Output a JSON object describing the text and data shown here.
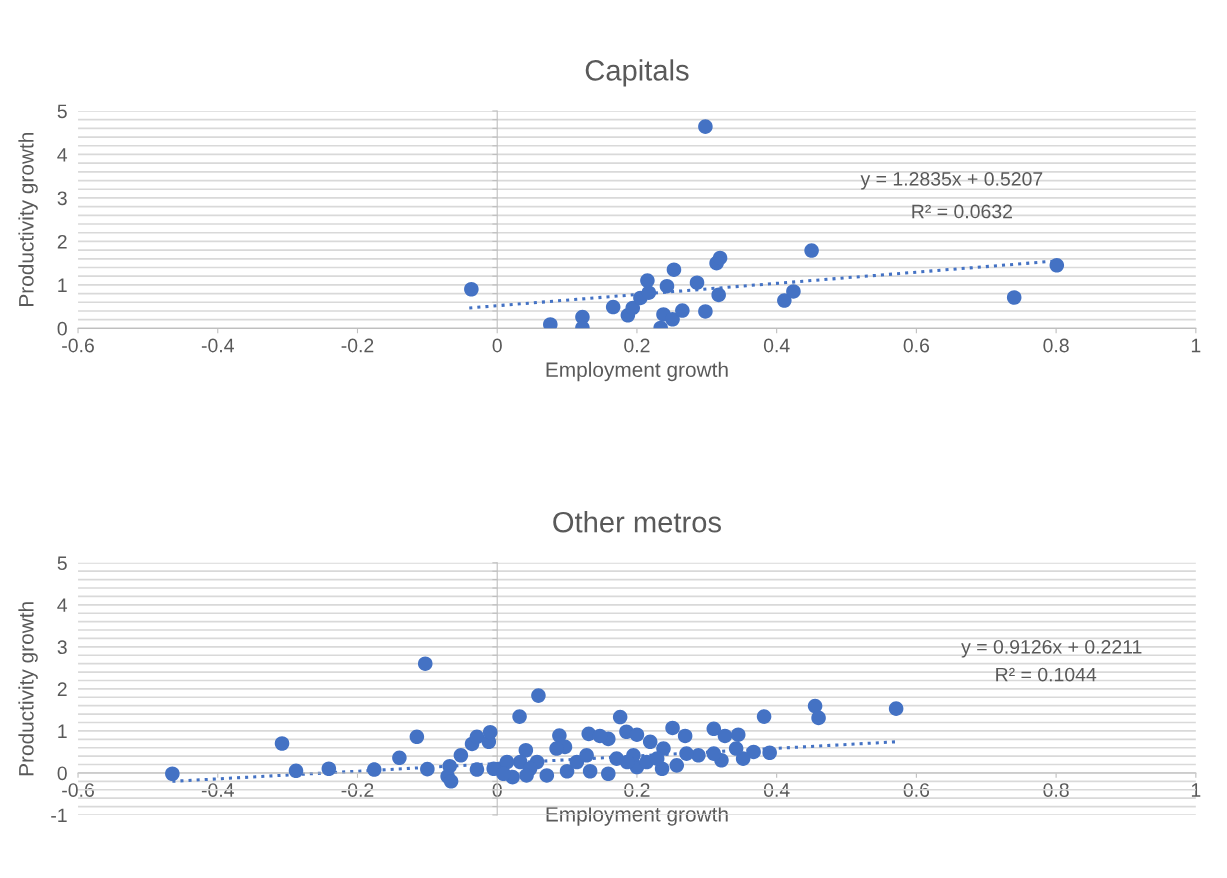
{
  "chart_data": [
    {
      "type": "scatter",
      "title": "Capitals",
      "xlabel": "Employment growth",
      "ylabel": "Productivity growth",
      "marker": "circle",
      "grid": "y",
      "legend": false,
      "xlim": [
        -0.6,
        1
      ],
      "xticks": [
        -0.6,
        -0.4,
        -0.2,
        0,
        0.2,
        0.4,
        0.6,
        0.8,
        1
      ],
      "ylim": [
        0,
        5
      ],
      "yticks": [
        0,
        {
          "value": 0.2,
          "label": null
        },
        {
          "value": 0.4,
          "label": null
        },
        {
          "value": 0.6,
          "label": null
        },
        {
          "value": 0.8,
          "label": null
        },
        1,
        {
          "value": 1.2,
          "label": null
        },
        {
          "value": 1.4,
          "label": null
        },
        {
          "value": 1.6,
          "label": null
        },
        {
          "value": 1.8,
          "label": null
        },
        2,
        {
          "value": 2.2,
          "label": null
        },
        {
          "value": 2.4,
          "label": null
        },
        {
          "value": 2.6,
          "label": null
        },
        {
          "value": 2.8,
          "label": null
        },
        3,
        {
          "value": 3.2,
          "label": null
        },
        {
          "value": 3.4,
          "label": null
        },
        {
          "value": 3.6,
          "label": null
        },
        {
          "value": 3.8,
          "label": null
        },
        4,
        {
          "value": 4.2,
          "label": null
        },
        {
          "value": 4.4,
          "label": null
        },
        {
          "value": 4.6,
          "label": null
        },
        {
          "value": 4.8,
          "label": null
        },
        5
      ],
      "annotations": [
        "y = 1.2835x + 0.5207",
        "R² = 0.0632"
      ],
      "series": [
        {
          "color": "#4472c4",
          "x": [
            -0.037,
            0.076,
            0.122,
            0.122,
            0.166,
            0.187,
            0.194,
            0.205,
            0.215,
            0.217,
            0.234,
            0.238,
            0.243,
            0.251,
            0.253,
            0.265,
            0.286,
            0.298,
            0.298,
            0.314,
            0.319,
            0.317,
            0.411,
            0.424,
            0.45,
            0.74,
            0.801
          ],
          "values": [
            0.9,
            0.09,
            0.26,
            0.01,
            0.49,
            0.3,
            0.47,
            0.7,
            1.1,
            0.82,
            0.01,
            0.32,
            0.97,
            0.21,
            1.35,
            0.41,
            1.05,
            4.64,
            0.39,
            1.5,
            1.62,
            0.77,
            0.64,
            0.85,
            1.79,
            0.71,
            1.45
          ]
        },
        {
          "type": "line",
          "line_style": "dotted",
          "marker": "none",
          "color": "#4472c4",
          "x": [
            -0.04,
            0.8
          ],
          "values": [
            0.47,
            1.55
          ]
        }
      ]
    },
    {
      "type": "scatter",
      "title": "Other metros",
      "xlabel": "Employment growth",
      "ylabel": "Productivity growth",
      "marker": "circle",
      "grid": "y",
      "legend": false,
      "xlim": [
        -0.6,
        1
      ],
      "xticks": [
        -0.6,
        -0.4,
        -0.2,
        0,
        0.2,
        0.4,
        0.6,
        0.8,
        1
      ],
      "ylim": [
        -1,
        5
      ],
      "yticks": [
        -1,
        {
          "value": -0.8,
          "label": null
        },
        {
          "value": -0.6,
          "label": null
        },
        {
          "value": -0.4,
          "label": null
        },
        {
          "value": -0.2,
          "label": null
        },
        0,
        {
          "value": 0.2,
          "label": null
        },
        {
          "value": 0.4,
          "label": null
        },
        {
          "value": 0.6,
          "label": null
        },
        {
          "value": 0.8,
          "label": null
        },
        1,
        {
          "value": 1.2,
          "label": null
        },
        {
          "value": 1.4,
          "label": null
        },
        {
          "value": 1.6,
          "label": null
        },
        {
          "value": 1.8,
          "label": null
        },
        2,
        {
          "value": 2.2,
          "label": null
        },
        {
          "value": 2.4,
          "label": null
        },
        {
          "value": 2.6,
          "label": null
        },
        {
          "value": 2.8,
          "label": null
        },
        3,
        {
          "value": 3.2,
          "label": null
        },
        {
          "value": 3.4,
          "label": null
        },
        {
          "value": 3.6,
          "label": null
        },
        {
          "value": 3.8,
          "label": null
        },
        4,
        {
          "value": 4.2,
          "label": null
        },
        {
          "value": 4.4,
          "label": null
        },
        {
          "value": 4.6,
          "label": null
        },
        {
          "value": 4.8,
          "label": null
        },
        5
      ],
      "annotations": [
        "y = 0.9126x + 0.2211",
        "R² = 0.1044"
      ],
      "series": [
        {
          "color": "#4472c4",
          "x": [
            -0.465,
            -0.308,
            -0.288,
            -0.241,
            -0.176,
            -0.14,
            -0.115,
            -0.103,
            -0.1,
            -0.068,
            -0.071,
            -0.066,
            -0.052,
            -0.036,
            -0.029,
            -0.012,
            -0.01,
            0.032,
            0.041,
            0.059,
            0.089,
            0.176,
            0.185,
            0.131,
            0.2,
            0.251,
            0.269,
            0.31,
            0.326,
            0.345,
            0.382,
            0.455,
            0.46,
            0.571,
            0.39,
            0.367,
            0.352,
            0.342,
            0.321,
            0.31,
            0.288,
            0.257,
            0.271,
            0.238,
            0.236,
            0.219,
            0.2,
            0.195,
            0.159,
            0.159,
            0.147,
            0.133,
            0.097,
            0.085,
            0.1,
            0.071,
            0.022,
            0.004,
            0.114,
            0.128,
            0.171,
            0.186,
            0.214,
            0.229,
            0.057,
            0.033,
            0.014,
            -0.029,
            -0.005,
            0.009,
            0.047,
            0.042
          ],
          "values": [
            -0.02,
            0.7,
            0.05,
            0.1,
            0.08,
            0.36,
            0.86,
            2.6,
            0.09,
            0.16,
            -0.08,
            -0.2,
            0.42,
            0.69,
            0.86,
            0.74,
            0.97,
            1.34,
            0.54,
            1.84,
            0.89,
            1.33,
            0.98,
            0.93,
            0.91,
            1.07,
            0.88,
            1.05,
            0.88,
            0.91,
            1.34,
            1.59,
            1.31,
            1.53,
            0.48,
            0.5,
            0.34,
            0.58,
            0.3,
            0.46,
            0.42,
            0.18,
            0.46,
            0.58,
            0.1,
            0.74,
            0.14,
            0.42,
            -0.02,
            0.81,
            0.88,
            0.04,
            0.62,
            0.58,
            0.04,
            -0.06,
            -0.1,
            0.1,
            0.26,
            0.42,
            0.34,
            0.26,
            0.26,
            0.34,
            0.26,
            0.26,
            0.26,
            0.08,
            0.1,
            -0.02,
            0.1,
            -0.06
          ]
        },
        {
          "type": "line",
          "line_style": "dotted",
          "marker": "none",
          "color": "#4472c4",
          "x": [
            -0.465,
            0.57
          ],
          "values": [
            -0.2,
            0.74
          ]
        }
      ]
    }
  ]
}
